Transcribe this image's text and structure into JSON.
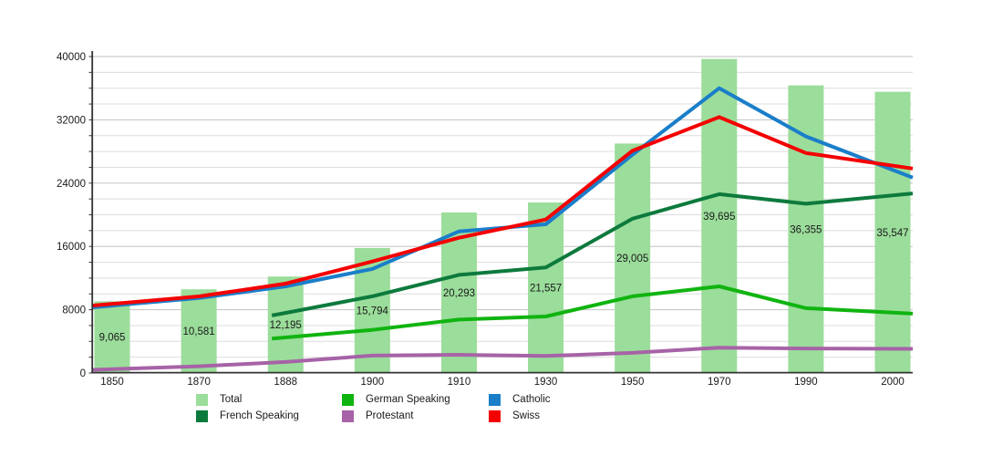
{
  "chart_data": {
    "type": "combo",
    "title": "",
    "categories": [
      "1850",
      "1870",
      "1888",
      "1900",
      "1910",
      "1930",
      "1950",
      "1970",
      "1990",
      "2000"
    ],
    "bar_series": {
      "name": "Total",
      "color": "#9bdd9b",
      "values": [
        9065,
        10581,
        12195,
        15794,
        20293,
        21557,
        29005,
        39695,
        36355,
        35547
      ],
      "value_labels": [
        "9,065",
        "10,581",
        "12,195",
        "15,794",
        "20,293",
        "21,557",
        "29,005",
        "39,695",
        "36,355",
        "35,547"
      ]
    },
    "line_series": [
      {
        "name": "French Speaking",
        "color": "#0d7a3d",
        "values": [
          null,
          null,
          7600,
          9700,
          12400,
          13350,
          19500,
          22600,
          21400,
          22700
        ]
      },
      {
        "name": "German Speaking",
        "color": "#10b410",
        "values": [
          null,
          null,
          4500,
          5450,
          6750,
          7150,
          9700,
          10950,
          8200,
          7500
        ]
      },
      {
        "name": "Protestant",
        "color": "#a763a7",
        "values": [
          400,
          850,
          1400,
          2200,
          2300,
          2150,
          2550,
          3200,
          3100,
          3050
        ]
      },
      {
        "name": "Catholic",
        "color": "#1a7ec9",
        "values": [
          8300,
          9480,
          10950,
          13150,
          17900,
          18800,
          27600,
          36000,
          29900,
          24700
        ]
      },
      {
        "name": "Swiss",
        "color": "#f40000",
        "values": [
          8530,
          9680,
          11300,
          14100,
          17100,
          19400,
          28100,
          32350,
          27800,
          25850
        ]
      }
    ],
    "ylim": [
      0,
      40000
    ],
    "y_major_step": 8000,
    "y_minor_step": 2000,
    "y_tick_labels": [
      "0",
      "8000",
      "16000",
      "24000",
      "32000",
      "40000"
    ],
    "grid": "horizontal",
    "legend_position": "bottom"
  },
  "legend": {
    "columns": [
      [
        {
          "label": "Total",
          "color": "#9bdd9b"
        },
        {
          "label": "French Speaking",
          "color": "#0d7a3d"
        }
      ],
      [
        {
          "label": "German Speaking",
          "color": "#10b410"
        },
        {
          "label": "Protestant",
          "color": "#a763a7"
        }
      ],
      [
        {
          "label": "Catholic",
          "color": "#1a7ec9"
        },
        {
          "label": "Swiss",
          "color": "#f40000"
        }
      ]
    ]
  },
  "colors": {
    "minor_grid": "#dddddd",
    "major_grid": "#c2c2c2",
    "axis": "#333333",
    "text": "#1a1a1a"
  }
}
